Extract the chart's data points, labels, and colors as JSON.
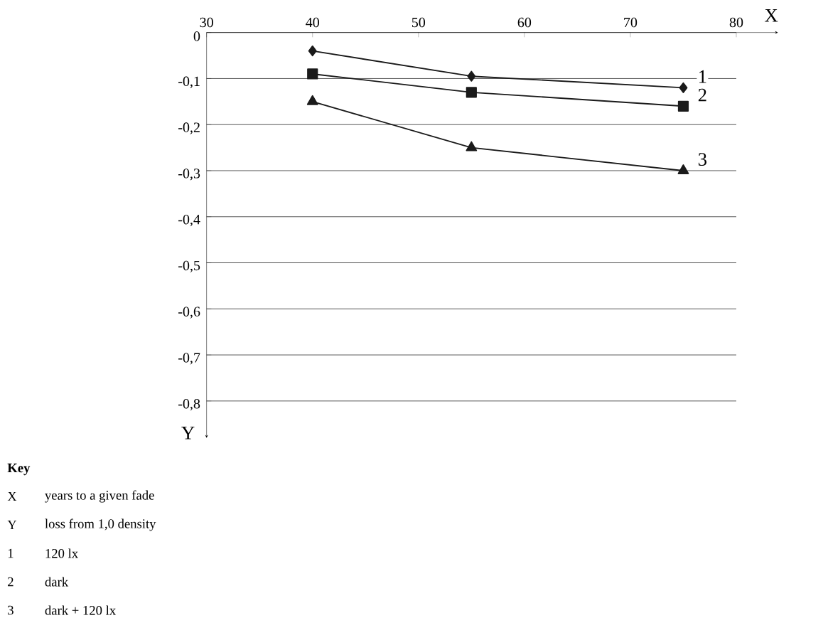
{
  "chart_data": {
    "type": "line",
    "xlabel": "X",
    "ylabel": "Y",
    "x": [
      40,
      55,
      75
    ],
    "series": [
      {
        "name": "1",
        "color": "#1a1a1a",
        "marker": "diamond",
        "values": [
          -0.04,
          -0.095,
          -0.12
        ]
      },
      {
        "name": "2",
        "color": "#1a1a1a",
        "marker": "square",
        "values": [
          -0.09,
          -0.13,
          -0.16
        ]
      },
      {
        "name": "3",
        "color": "#1a1a1a",
        "marker": "triangle",
        "values": [
          -0.15,
          -0.25,
          -0.3
        ]
      }
    ],
    "xlim": [
      30,
      80
    ],
    "xticks": [
      30,
      40,
      50,
      60,
      70,
      80
    ],
    "ylim": [
      -0.88,
      0
    ],
    "yticks": [
      0,
      {
        "value": -0.1,
        "label": "-0,1"
      },
      {
        "value": -0.2,
        "label": "-0,2"
      },
      {
        "value": -0.3,
        "label": "-0,3"
      },
      {
        "value": -0.4,
        "label": "-0,4"
      },
      {
        "value": -0.5,
        "label": "-0,5"
      },
      {
        "value": -0.6,
        "label": "-0,6"
      },
      {
        "value": -0.7,
        "label": "-0,7"
      },
      {
        "value": -0.8,
        "label": "-0,8"
      }
    ],
    "grid": "y",
    "line_style": "solid",
    "annotations": [
      "Key",
      "X",
      "years to a given fade",
      "Y",
      "loss from 1,0 density",
      "1",
      "120 lx",
      "2",
      "dark",
      "3",
      "dark + 120 lx"
    ]
  }
}
